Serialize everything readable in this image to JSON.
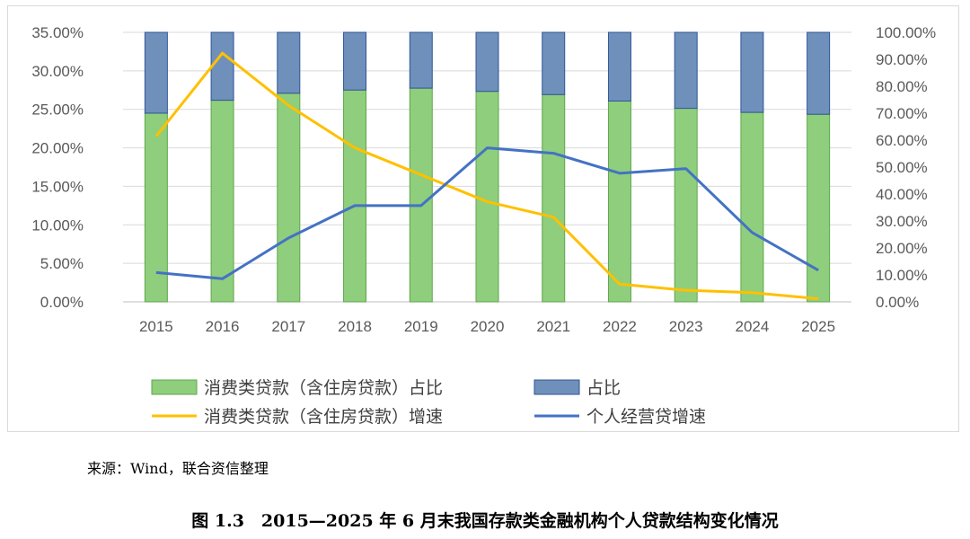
{
  "chart_data": {
    "type": "bar+line",
    "categories": [
      "2015",
      "2016",
      "2017",
      "2018",
      "2019",
      "2020",
      "2021",
      "2022",
      "2023",
      "2024",
      "2025"
    ],
    "y_left": {
      "min": 0,
      "max": 35,
      "ticks": [
        "0.00%",
        "5.00%",
        "10.00%",
        "15.00%",
        "20.00%",
        "25.00%",
        "30.00%",
        "35.00%"
      ]
    },
    "y_right": {
      "min": 0,
      "max": 100,
      "ticks": [
        "0.00%",
        "10.00%",
        "20.00%",
        "30.00%",
        "40.00%",
        "50.00%",
        "60.00%",
        "70.00%",
        "80.00%",
        "90.00%",
        "100.00%"
      ]
    },
    "series": [
      {
        "name": "消费类贷款（含住房贷款）占比",
        "kind": "stacked-bar",
        "axis": "right",
        "color": "#8fce7c",
        "values": [
          70.0,
          74.8,
          77.4,
          78.6,
          79.3,
          78.1,
          76.9,
          74.5,
          71.8,
          70.3,
          69.6
        ]
      },
      {
        "name": "占比",
        "kind": "stacked-bar",
        "axis": "right",
        "color": "#6f90bb",
        "values": [
          30.0,
          25.2,
          22.6,
          21.4,
          20.7,
          21.9,
          23.1,
          25.5,
          28.2,
          29.7,
          30.4
        ]
      },
      {
        "name": "消费类贷款（含住房贷款）增速",
        "kind": "line",
        "axis": "left",
        "color": "#ffc000",
        "values": [
          21.5,
          32.3,
          25.5,
          20.0,
          16.5,
          13.0,
          11.0,
          2.3,
          1.5,
          1.2,
          0.4
        ]
      },
      {
        "name": "个人经营贷增速",
        "kind": "line",
        "axis": "left",
        "color": "#4472c4",
        "values": [
          3.8,
          3.0,
          8.3,
          12.5,
          12.5,
          20.0,
          19.3,
          16.7,
          17.3,
          9.0,
          4.1
        ]
      }
    ],
    "legend_position": "bottom"
  },
  "source_note": "来源：Wind，联合资信整理",
  "caption": "图 1.3　2015—2025 年 6 月末我国存款类金融机构个人贷款结构变化情况"
}
